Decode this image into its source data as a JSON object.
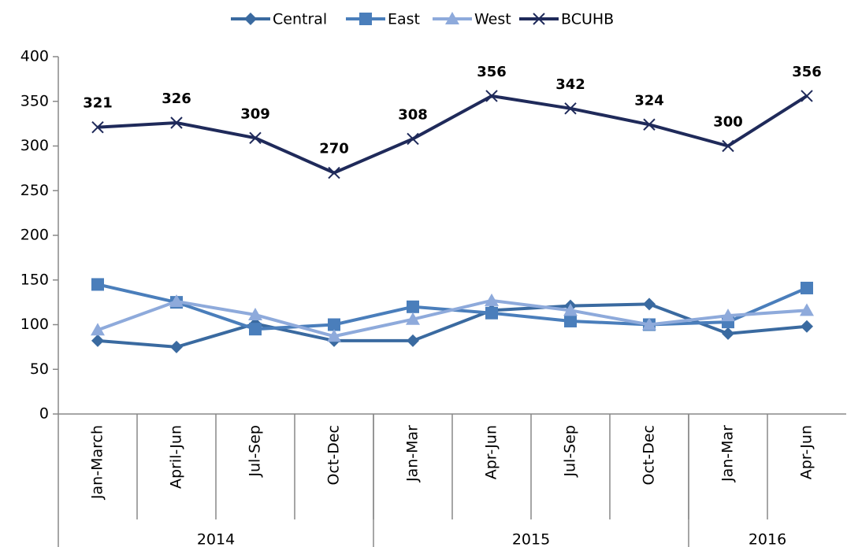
{
  "chart_data": {
    "type": "line",
    "categories": [
      "Jan-March",
      "April-Jun",
      "Jul-Sep",
      "Oct-Dec",
      "Jan-Mar",
      "Apr-Jun",
      "Jul-Sep",
      "Oct-Dec",
      "Jan-Mar",
      "Apr-Jun"
    ],
    "category_groups": [
      {
        "label": "2014",
        "count": 4
      },
      {
        "label": "2015",
        "count": 4
      },
      {
        "label": "2016",
        "count": 2
      }
    ],
    "series": [
      {
        "name": "Central",
        "color": "#3a6aa0",
        "marker": "diamond",
        "values": [
          82,
          75,
          101,
          82,
          82,
          116,
          121,
          123,
          90,
          98
        ]
      },
      {
        "name": "East",
        "color": "#4a7ebb",
        "marker": "square",
        "values": [
          145,
          125,
          95,
          100,
          120,
          113,
          104,
          100,
          103,
          141
        ]
      },
      {
        "name": "West",
        "color": "#8eaadb",
        "marker": "triangle",
        "values": [
          94,
          126,
          111,
          87,
          106,
          127,
          116,
          100,
          110,
          116
        ]
      },
      {
        "name": "BCUHB",
        "color": "#1f2a5a",
        "marker": "x",
        "values": [
          321,
          326,
          309,
          270,
          308,
          356,
          342,
          324,
          300,
          356
        ],
        "show_labels": true
      }
    ],
    "ylim": [
      0,
      400
    ],
    "yticks": [
      0,
      50,
      100,
      150,
      200,
      250,
      300,
      350,
      400
    ],
    "grid": false,
    "legend": "top"
  }
}
